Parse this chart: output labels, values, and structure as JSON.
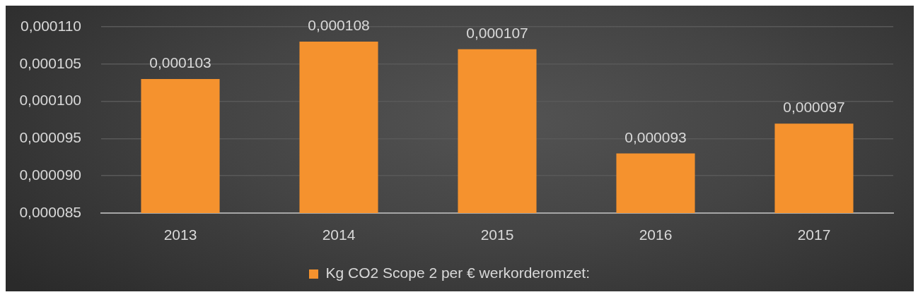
{
  "chart_data": {
    "type": "bar",
    "categories": [
      "2013",
      "2014",
      "2015",
      "2016",
      "2017"
    ],
    "series": [
      {
        "name": "Kg CO2 Scope 2 per € werkorderomzet:",
        "color": "#f5922e",
        "values": [
          0.000103,
          0.000108,
          0.000107,
          9.3e-05,
          9.7e-05
        ],
        "value_labels": [
          "0,000103",
          "0,000108",
          "0,000107",
          "0,000093",
          "0,000097"
        ]
      }
    ],
    "ylim": [
      8.5e-05,
      0.00011
    ],
    "yticks": [
      {
        "value": 8.5e-05,
        "label": "0,000085"
      },
      {
        "value": 9e-05,
        "label": "0,000090"
      },
      {
        "value": 9.5e-05,
        "label": "0,000095"
      },
      {
        "value": 0.0001,
        "label": "0,000100"
      },
      {
        "value": 0.000105,
        "label": "0,000105"
      },
      {
        "value": 0.00011,
        "label": "0,000110"
      }
    ],
    "grid": "y",
    "legend": "bottom"
  }
}
